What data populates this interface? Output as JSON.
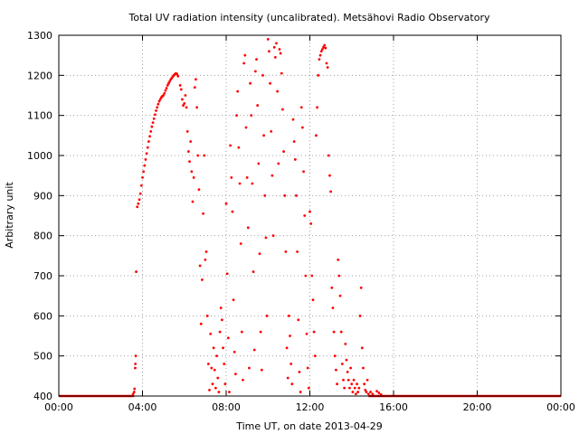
{
  "chart_data": {
    "type": "scatter",
    "title": "Total UV radiation intensity (uncalibrated). Metsähovi Radio Observatory",
    "xlabel": "Time UT, on date 2013-04-29",
    "ylabel": "Arbitrary unit",
    "x_unit": "hours UT",
    "xlim": [
      0,
      24
    ],
    "ylim": [
      400,
      1300
    ],
    "x_ticks": [
      0,
      4,
      8,
      12,
      16,
      20,
      24
    ],
    "x_tick_labels": [
      "00:00",
      "04:00",
      "08:00",
      "12:00",
      "16:00",
      "20:00",
      "00:00"
    ],
    "y_ticks": [
      400,
      500,
      600,
      700,
      800,
      900,
      1000,
      1100,
      1200,
      1300
    ],
    "y_tick_labels": [
      "400",
      "500",
      "600",
      "700",
      "800",
      "900",
      "1000",
      "1100",
      "1200",
      "1300"
    ],
    "grid": "dotted",
    "marker_color": "#ff0000",
    "baseline_value": 400,
    "baseline_ranges": [
      [
        0,
        3.6
      ],
      [
        14.8,
        24
      ]
    ],
    "series": [
      {
        "points": [
          [
            3.55,
            405
          ],
          [
            3.6,
            410
          ],
          [
            3.62,
            418
          ],
          [
            3.65,
            470
          ],
          [
            3.66,
            480
          ],
          [
            3.68,
            500
          ],
          [
            3.7,
            710
          ],
          [
            3.75,
            872
          ],
          [
            3.8,
            880
          ],
          [
            3.85,
            890
          ],
          [
            3.9,
            905
          ],
          [
            3.95,
            925
          ],
          [
            4.0,
            945
          ],
          [
            4.05,
            960
          ],
          [
            4.1,
            975
          ],
          [
            4.15,
            990
          ],
          [
            4.2,
            1005
          ],
          [
            4.25,
            1020
          ],
          [
            4.3,
            1035
          ],
          [
            4.35,
            1048
          ],
          [
            4.4,
            1060
          ],
          [
            4.45,
            1072
          ],
          [
            4.5,
            1082
          ],
          [
            4.55,
            1092
          ],
          [
            4.6,
            1102
          ],
          [
            4.65,
            1112
          ],
          [
            4.7,
            1120
          ],
          [
            4.75,
            1128
          ],
          [
            4.8,
            1135
          ],
          [
            4.85,
            1140
          ],
          [
            4.9,
            1145
          ],
          [
            4.95,
            1148
          ],
          [
            5.0,
            1150
          ],
          [
            5.05,
            1155
          ],
          [
            5.1,
            1162
          ],
          [
            5.15,
            1168
          ],
          [
            5.2,
            1175
          ],
          [
            5.25,
            1180
          ],
          [
            5.3,
            1185
          ],
          [
            5.35,
            1190
          ],
          [
            5.4,
            1193
          ],
          [
            5.45,
            1197
          ],
          [
            5.5,
            1200
          ],
          [
            5.55,
            1203
          ],
          [
            5.6,
            1205
          ],
          [
            5.65,
            1203
          ],
          [
            5.7,
            1198
          ],
          [
            5.8,
            1175
          ],
          [
            5.85,
            1165
          ],
          [
            5.9,
            1140
          ],
          [
            5.95,
            1125
          ],
          [
            6.0,
            1130
          ],
          [
            6.05,
            1150
          ],
          [
            6.1,
            1120
          ],
          [
            6.15,
            1060
          ],
          [
            6.2,
            1010
          ],
          [
            6.25,
            985
          ],
          [
            6.3,
            1035
          ],
          [
            6.35,
            960
          ],
          [
            6.4,
            885
          ],
          [
            6.45,
            945
          ],
          [
            6.5,
            1170
          ],
          [
            6.55,
            1190
          ],
          [
            6.6,
            1120
          ],
          [
            6.65,
            1000
          ],
          [
            6.7,
            915
          ],
          [
            6.75,
            725
          ],
          [
            6.8,
            580
          ],
          [
            6.85,
            690
          ],
          [
            6.9,
            855
          ],
          [
            6.95,
            1000
          ],
          [
            7.0,
            740
          ],
          [
            7.05,
            760
          ],
          [
            7.1,
            600
          ],
          [
            7.15,
            480
          ],
          [
            7.2,
            415
          ],
          [
            7.25,
            555
          ],
          [
            7.3,
            470
          ],
          [
            7.35,
            430
          ],
          [
            7.4,
            520
          ],
          [
            7.45,
            465
          ],
          [
            7.5,
            420
          ],
          [
            7.55,
            500
          ],
          [
            7.6,
            445
          ],
          [
            7.65,
            410
          ],
          [
            7.7,
            560
          ],
          [
            7.75,
            620
          ],
          [
            7.8,
            590
          ],
          [
            7.85,
            520
          ],
          [
            7.9,
            480
          ],
          [
            7.95,
            430
          ],
          [
            8.0,
            880
          ],
          [
            8.05,
            705
          ],
          [
            8.1,
            545
          ],
          [
            8.15,
            410
          ],
          [
            8.2,
            1025
          ],
          [
            8.25,
            945
          ],
          [
            8.3,
            860
          ],
          [
            8.35,
            640
          ],
          [
            8.4,
            510
          ],
          [
            8.45,
            455
          ],
          [
            8.5,
            1100
          ],
          [
            8.55,
            1160
          ],
          [
            8.6,
            1020
          ],
          [
            8.65,
            930
          ],
          [
            8.7,
            780
          ],
          [
            8.75,
            560
          ],
          [
            8.8,
            440
          ],
          [
            8.85,
            1230
          ],
          [
            8.9,
            1250
          ],
          [
            8.95,
            1070
          ],
          [
            9.0,
            945
          ],
          [
            9.05,
            820
          ],
          [
            9.1,
            470
          ],
          [
            9.15,
            1180
          ],
          [
            9.2,
            1100
          ],
          [
            9.25,
            930
          ],
          [
            9.3,
            710
          ],
          [
            9.35,
            515
          ],
          [
            9.4,
            1210
          ],
          [
            9.45,
            1240
          ],
          [
            9.5,
            1125
          ],
          [
            9.55,
            980
          ],
          [
            9.6,
            755
          ],
          [
            9.65,
            560
          ],
          [
            9.7,
            465
          ],
          [
            9.75,
            1200
          ],
          [
            9.8,
            1050
          ],
          [
            9.85,
            900
          ],
          [
            9.9,
            795
          ],
          [
            9.95,
            600
          ],
          [
            10.0,
            1290
          ],
          [
            10.05,
            1260
          ],
          [
            10.1,
            1180
          ],
          [
            10.15,
            1060
          ],
          [
            10.2,
            950
          ],
          [
            10.25,
            800
          ],
          [
            10.3,
            1270
          ],
          [
            10.35,
            1245
          ],
          [
            10.4,
            1280
          ],
          [
            10.45,
            1160
          ],
          [
            10.5,
            980
          ],
          [
            10.55,
            1265
          ],
          [
            10.6,
            1255
          ],
          [
            10.65,
            1205
          ],
          [
            10.7,
            1115
          ],
          [
            10.75,
            1010
          ],
          [
            10.8,
            900
          ],
          [
            10.85,
            760
          ],
          [
            10.9,
            520
          ],
          [
            10.95,
            445
          ],
          [
            11.0,
            600
          ],
          [
            11.05,
            550
          ],
          [
            11.1,
            480
          ],
          [
            11.15,
            430
          ],
          [
            11.2,
            1090
          ],
          [
            11.25,
            1035
          ],
          [
            11.3,
            990
          ],
          [
            11.35,
            900
          ],
          [
            11.4,
            760
          ],
          [
            11.45,
            590
          ],
          [
            11.5,
            460
          ],
          [
            11.55,
            410
          ],
          [
            11.6,
            1120
          ],
          [
            11.65,
            1070
          ],
          [
            11.7,
            960
          ],
          [
            11.75,
            850
          ],
          [
            11.8,
            700
          ],
          [
            11.85,
            555
          ],
          [
            11.9,
            470
          ],
          [
            11.95,
            420
          ],
          [
            12.0,
            860
          ],
          [
            12.05,
            830
          ],
          [
            12.1,
            700
          ],
          [
            12.15,
            640
          ],
          [
            12.2,
            560
          ],
          [
            12.25,
            500
          ],
          [
            12.3,
            1050
          ],
          [
            12.35,
            1120
          ],
          [
            12.4,
            1200
          ],
          [
            12.45,
            1240
          ],
          [
            12.5,
            1250
          ],
          [
            12.55,
            1260
          ],
          [
            12.6,
            1265
          ],
          [
            12.65,
            1270
          ],
          [
            12.7,
            1275
          ],
          [
            12.75,
            1268
          ],
          [
            12.8,
            1230
          ],
          [
            12.85,
            1220
          ],
          [
            12.9,
            1000
          ],
          [
            12.95,
            950
          ],
          [
            13.0,
            910
          ],
          [
            13.05,
            670
          ],
          [
            13.1,
            620
          ],
          [
            13.15,
            560
          ],
          [
            13.2,
            500
          ],
          [
            13.25,
            465
          ],
          [
            13.3,
            430
          ],
          [
            13.35,
            740
          ],
          [
            13.4,
            700
          ],
          [
            13.45,
            650
          ],
          [
            13.5,
            560
          ],
          [
            13.55,
            480
          ],
          [
            13.6,
            440
          ],
          [
            13.65,
            420
          ],
          [
            13.7,
            530
          ],
          [
            13.75,
            490
          ],
          [
            13.8,
            460
          ],
          [
            13.85,
            440
          ],
          [
            13.9,
            420
          ],
          [
            13.95,
            470
          ],
          [
            14.0,
            430
          ],
          [
            14.05,
            410
          ],
          [
            14.1,
            440
          ],
          [
            14.15,
            420
          ],
          [
            14.2,
            405
          ],
          [
            14.25,
            430
          ],
          [
            14.3,
            410
          ],
          [
            14.35,
            420
          ],
          [
            14.4,
            600
          ],
          [
            14.45,
            670
          ],
          [
            14.5,
            520
          ],
          [
            14.55,
            470
          ],
          [
            14.6,
            430
          ],
          [
            14.65,
            415
          ],
          [
            14.7,
            410
          ],
          [
            14.75,
            440
          ],
          [
            14.8,
            405
          ],
          [
            14.9,
            410
          ],
          [
            15.0,
            405
          ],
          [
            15.2,
            412
          ],
          [
            15.3,
            408
          ],
          [
            15.4,
            404
          ]
        ]
      }
    ]
  }
}
